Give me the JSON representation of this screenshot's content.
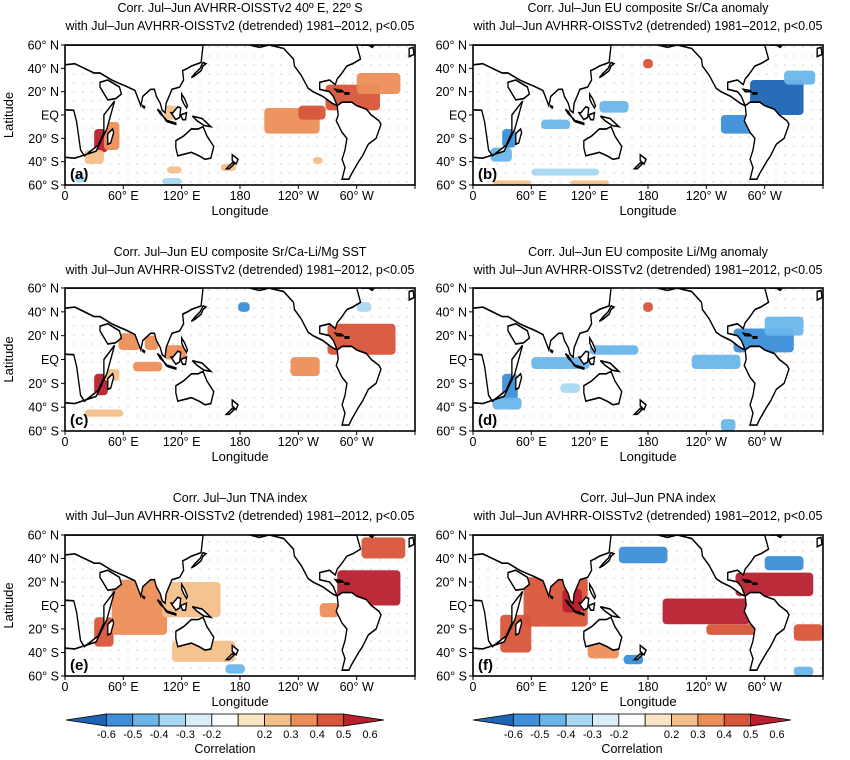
{
  "colors": {
    "neg": [
      "#1e64b4",
      "#3c8fd8",
      "#6ab6ea",
      "#a8d8f2",
      "#d9eef8"
    ],
    "pos": [
      "#fbe6c4",
      "#f4c08a",
      "#ec8e58",
      "#d8553a",
      "#b8202e"
    ],
    "coast": "#000000",
    "grid": "#9a9a9a"
  },
  "chart_data": [
    {
      "type": "heatmap",
      "id": "a",
      "panel_label": "(a)",
      "title_lines": [
        "Corr. Jul–Jun AVHRR-OISSTv2 40º E, 22º S",
        "with Jul–Jun AVHRR-OISSTv2 (detrended) 1981–2012, p<0.05"
      ],
      "xlabel": "Longitude",
      "ylabel": "Latitude",
      "xticks": [
        "0",
        "60° E",
        "120° E",
        "180",
        "120° W",
        "60° W"
      ],
      "yticks": [
        "60° N",
        "40° N",
        "20° N",
        "EQ",
        "20° S",
        "40° S",
        "60° S"
      ],
      "xlim": [
        0,
        360
      ],
      "ylim": [
        -60,
        60
      ],
      "regions": [
        {
          "lon": [
            30,
            44
          ],
          "lat": [
            -32,
            -12
          ],
          "value": 0.6
        },
        {
          "lon": [
            40,
            56
          ],
          "lat": [
            -30,
            -6
          ],
          "value": 0.35
        },
        {
          "lon": [
            20,
            40
          ],
          "lat": [
            -42,
            -30
          ],
          "value": 0.3
        },
        {
          "lon": [
            102,
            116
          ],
          "lat": [
            -4,
            8
          ],
          "value": 0.3
        },
        {
          "lon": [
            105,
            120
          ],
          "lat": [
            -50,
            -44
          ],
          "value": 0.3
        },
        {
          "lon": [
            160,
            176
          ],
          "lat": [
            -48,
            -42
          ],
          "value": 0.3
        },
        {
          "lon": [
            205,
            262
          ],
          "lat": [
            -16,
            6
          ],
          "value": 0.4
        },
        {
          "lon": [
            240,
            268
          ],
          "lat": [
            -4,
            8
          ],
          "value": 0.45
        },
        {
          "lon": [
            268,
            324
          ],
          "lat": [
            4,
            26
          ],
          "value": 0.45
        },
        {
          "lon": [
            300,
            345
          ],
          "lat": [
            18,
            36
          ],
          "value": 0.4
        },
        {
          "lon": [
            255,
            265
          ],
          "lat": [
            -42,
            -36
          ],
          "value": 0.3
        },
        {
          "lon": [
            10,
            20
          ],
          "lat": [
            -58,
            -50
          ],
          "value": -0.3
        },
        {
          "lon": [
            100,
            120
          ],
          "lat": [
            -60,
            -54
          ],
          "value": -0.3
        }
      ]
    },
    {
      "type": "heatmap",
      "id": "b",
      "panel_label": "(b)",
      "title_lines": [
        "Corr. Jul–Jun EU composite Sr/Ca anomaly",
        "with Jul–Jun AVHRR-OISSTv2 (detrended) 1981–2012, p<0.05"
      ],
      "xlabel": "Longitude",
      "ylabel": "Latitude",
      "xticks": [
        "0",
        "60° E",
        "120° E",
        "180",
        "120° W",
        "60° W"
      ],
      "yticks": [
        "60° N",
        "40° N",
        "20° N",
        "EQ",
        "20° S",
        "40° S",
        "60° S"
      ],
      "xlim": [
        0,
        360
      ],
      "ylim": [
        -60,
        60
      ],
      "regions": [
        {
          "lon": [
            30,
            44
          ],
          "lat": [
            -28,
            -12
          ],
          "value": -0.5
        },
        {
          "lon": [
            18,
            40
          ],
          "lat": [
            -40,
            -28
          ],
          "value": -0.4
        },
        {
          "lon": [
            70,
            100
          ],
          "lat": [
            -12,
            -4
          ],
          "value": -0.4
        },
        {
          "lon": [
            130,
            160
          ],
          "lat": [
            2,
            12
          ],
          "value": -0.35
        },
        {
          "lon": [
            175,
            185
          ],
          "lat": [
            40,
            48
          ],
          "value": 0.45
        },
        {
          "lon": [
            255,
            315
          ],
          "lat": [
            -16,
            0
          ],
          "value": -0.45
        },
        {
          "lon": [
            285,
            340
          ],
          "lat": [
            0,
            30
          ],
          "value": -0.55
        },
        {
          "lon": [
            320,
            352
          ],
          "lat": [
            26,
            38
          ],
          "value": -0.35
        },
        {
          "lon": [
            60,
            130
          ],
          "lat": [
            -52,
            -46
          ],
          "value": -0.3
        },
        {
          "lon": [
            20,
            60
          ],
          "lat": [
            -60,
            -56
          ],
          "value": 0.3
        },
        {
          "lon": [
            100,
            140
          ],
          "lat": [
            -60,
            -56
          ],
          "value": 0.3
        }
      ]
    },
    {
      "type": "heatmap",
      "id": "c",
      "panel_label": "(c)",
      "title_lines": [
        "Corr. Jul–Jun EU composite Sr/Ca-Li/Mg SST",
        "with Jul–Jun AVHRR-OISSTv2 (detrended) 1981–2012, p<0.05"
      ],
      "xlabel": "Longitude",
      "ylabel": "Latitude",
      "xticks": [
        "0",
        "60° E",
        "120° E",
        "180",
        "120° W",
        "60° W"
      ],
      "yticks": [
        "60° N",
        "40° N",
        "20° N",
        "EQ",
        "20° S",
        "40° S",
        "60° S"
      ],
      "xlim": [
        0,
        360
      ],
      "ylim": [
        -60,
        60
      ],
      "regions": [
        {
          "lon": [
            30,
            44
          ],
          "lat": [
            -30,
            -12
          ],
          "value": 0.55
        },
        {
          "lon": [
            40,
            56
          ],
          "lat": [
            -18,
            -8
          ],
          "value": 0.3
        },
        {
          "lon": [
            55,
            78
          ],
          "lat": [
            8,
            22
          ],
          "value": 0.4
        },
        {
          "lon": [
            82,
            96
          ],
          "lat": [
            8,
            20
          ],
          "value": 0.4
        },
        {
          "lon": [
            102,
            125
          ],
          "lat": [
            0,
            12
          ],
          "value": 0.35
        },
        {
          "lon": [
            70,
            100
          ],
          "lat": [
            -10,
            -2
          ],
          "value": 0.4
        },
        {
          "lon": [
            178,
            190
          ],
          "lat": [
            40,
            48
          ],
          "value": -0.5
        },
        {
          "lon": [
            232,
            262
          ],
          "lat": [
            -14,
            2
          ],
          "value": 0.4
        },
        {
          "lon": [
            270,
            340
          ],
          "lat": [
            4,
            30
          ],
          "value": 0.45
        },
        {
          "lon": [
            20,
            60
          ],
          "lat": [
            -48,
            -42
          ],
          "value": 0.3
        },
        {
          "lon": [
            300,
            315
          ],
          "lat": [
            40,
            48
          ],
          "value": -0.3
        }
      ]
    },
    {
      "type": "heatmap",
      "id": "d",
      "panel_label": "(d)",
      "title_lines": [
        "Corr. Jul–Jun EU composite Li/Mg anomaly",
        "with Jul–Jun AVHRR-OISSTv2 (detrended) 1981–2012, p<0.05"
      ],
      "xlabel": "Longitude",
      "ylabel": "Latitude",
      "xticks": [
        "0",
        "60° E",
        "120° E",
        "180",
        "120° W",
        "60° W"
      ],
      "yticks": [
        "60° N",
        "40° N",
        "20° N",
        "EQ",
        "20° S",
        "40° S",
        "60° S"
      ],
      "xlim": [
        0,
        360
      ],
      "ylim": [
        -60,
        60
      ],
      "regions": [
        {
          "lon": [
            30,
            46
          ],
          "lat": [
            -34,
            -12
          ],
          "value": -0.5
        },
        {
          "lon": [
            20,
            50
          ],
          "lat": [
            -42,
            -32
          ],
          "value": -0.4
        },
        {
          "lon": [
            60,
            120
          ],
          "lat": [
            -8,
            2
          ],
          "value": -0.35
        },
        {
          "lon": [
            120,
            170
          ],
          "lat": [
            4,
            12
          ],
          "value": -0.35
        },
        {
          "lon": [
            175,
            185
          ],
          "lat": [
            40,
            48
          ],
          "value": 0.45
        },
        {
          "lon": [
            225,
            275
          ],
          "lat": [
            -8,
            4
          ],
          "value": -0.35
        },
        {
          "lon": [
            268,
            330
          ],
          "lat": [
            6,
            26
          ],
          "value": -0.5
        },
        {
          "lon": [
            300,
            340
          ],
          "lat": [
            20,
            36
          ],
          "value": -0.4
        },
        {
          "lon": [
            90,
            110
          ],
          "lat": [
            -28,
            -20
          ],
          "value": -0.3
        },
        {
          "lon": [
            255,
            270
          ],
          "lat": [
            -60,
            -50
          ],
          "value": -0.35
        }
      ]
    },
    {
      "type": "heatmap",
      "id": "e",
      "panel_label": "(e)",
      "title_lines": [
        "Corr. Jul–Jun TNA index",
        "with Jul–Jun AVHRR-OISSTv2 (detrended) 1981–2012, p<0.05"
      ],
      "xlabel": "Longitude",
      "ylabel": "Latitude",
      "xticks": [
        "0",
        "60° E",
        "120° E",
        "180",
        "120° W",
        "60° W"
      ],
      "yticks": [
        "60° N",
        "40° N",
        "20° N",
        "EQ",
        "20° S",
        "40° S",
        "60° S"
      ],
      "xlim": [
        0,
        360
      ],
      "ylim": [
        -60,
        60
      ],
      "regions": [
        {
          "lon": [
            30,
            50
          ],
          "lat": [
            -35,
            -10
          ],
          "value": 0.45
        },
        {
          "lon": [
            48,
            105
          ],
          "lat": [
            -25,
            22
          ],
          "value": 0.35
        },
        {
          "lon": [
            100,
            160
          ],
          "lat": [
            -10,
            20
          ],
          "value": 0.3
        },
        {
          "lon": [
            110,
            175
          ],
          "lat": [
            -48,
            -30
          ],
          "value": 0.25
        },
        {
          "lon": [
            280,
            345
          ],
          "lat": [
            0,
            30
          ],
          "value": 0.6
        },
        {
          "lon": [
            305,
            350
          ],
          "lat": [
            40,
            58
          ],
          "value": 0.5
        },
        {
          "lon": [
            262,
            282
          ],
          "lat": [
            -10,
            2
          ],
          "value": 0.35
        },
        {
          "lon": [
            165,
            185
          ],
          "lat": [
            -58,
            -50
          ],
          "value": -0.35
        }
      ]
    },
    {
      "type": "heatmap",
      "id": "f",
      "panel_label": "(f)",
      "title_lines": [
        "Corr. Jul–Jun PNA index",
        "with Jul–Jun AVHRR-OISSTv2 (detrended) 1981–2012, p<0.05"
      ],
      "xlabel": "Longitude",
      "ylabel": "Latitude",
      "xticks": [
        "0",
        "60° E",
        "120° E",
        "180",
        "120° W",
        "60° W"
      ],
      "yticks": [
        "60° N",
        "40° N",
        "20° N",
        "EQ",
        "20° S",
        "40° S",
        "60° S"
      ],
      "xlim": [
        0,
        360
      ],
      "ylim": [
        -60,
        60
      ],
      "regions": [
        {
          "lon": [
            28,
            60
          ],
          "lat": [
            -40,
            -8
          ],
          "value": 0.45
        },
        {
          "lon": [
            52,
            118
          ],
          "lat": [
            -18,
            24
          ],
          "value": 0.45
        },
        {
          "lon": [
            92,
            112
          ],
          "lat": [
            -6,
            14
          ],
          "value": 0.55
        },
        {
          "lon": [
            118,
            150
          ],
          "lat": [
            -45,
            -30
          ],
          "value": 0.35
        },
        {
          "lon": [
            150,
            200
          ],
          "lat": [
            36,
            50
          ],
          "value": -0.5
        },
        {
          "lon": [
            195,
            285
          ],
          "lat": [
            -16,
            6
          ],
          "value": 0.6
        },
        {
          "lon": [
            240,
            300
          ],
          "lat": [
            -25,
            -16
          ],
          "value": 0.45
        },
        {
          "lon": [
            270,
            350
          ],
          "lat": [
            8,
            28
          ],
          "value": 0.55
        },
        {
          "lon": [
            300,
            340
          ],
          "lat": [
            30,
            42
          ],
          "value": -0.45
        },
        {
          "lon": [
            330,
            360
          ],
          "lat": [
            -30,
            -16
          ],
          "value": 0.45
        },
        {
          "lon": [
            155,
            175
          ],
          "lat": [
            -50,
            -42
          ],
          "value": -0.5
        },
        {
          "lon": [
            330,
            350
          ],
          "lat": [
            -60,
            -52
          ],
          "value": -0.4
        }
      ]
    }
  ],
  "colorbars": [
    {
      "ticks": [
        "-0.6",
        "-0.5",
        "-0.4",
        "-0.3",
        "-0.2",
        "0.2",
        "0.3",
        "0.4",
        "0.5",
        "0.6"
      ],
      "label": "Correlation"
    },
    {
      "ticks": [
        "-0.6",
        "-0.5",
        "-0.4",
        "-0.3",
        "-0.2",
        "0.2",
        "0.3",
        "0.4",
        "0.5",
        "0.6"
      ],
      "label": "Correlation"
    }
  ]
}
